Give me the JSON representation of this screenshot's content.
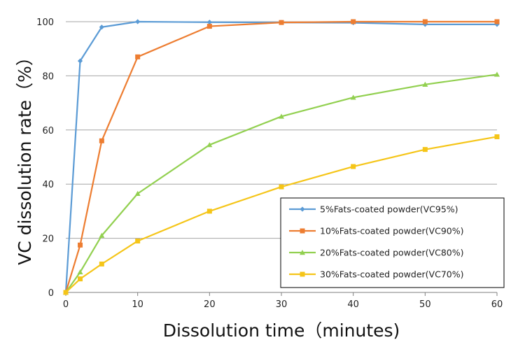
{
  "chart_data": {
    "type": "line",
    "xlabel": "Dissolution time（minutes)",
    "ylabel": "VC dissolution rate（%）",
    "xlim": [
      0,
      60
    ],
    "ylim": [
      0,
      100
    ],
    "x_ticks": [
      0,
      10,
      20,
      30,
      40,
      50,
      60
    ],
    "y_ticks": [
      0,
      20,
      40,
      60,
      80,
      100
    ],
    "grid": "horizontal",
    "legend_position": "bottom-right",
    "series": [
      {
        "name": "5%Fats-coated powder(VC95%)",
        "color": "#5b9bd5",
        "marker": "diamond",
        "x": [
          0,
          2,
          5,
          10,
          20,
          30,
          40,
          50,
          60
        ],
        "y": [
          0,
          85.5,
          98,
          100,
          99.8,
          99.7,
          99.6,
          99,
          99
        ]
      },
      {
        "name": "10%Fats-coated powder(VC90%)",
        "color": "#ed7d31",
        "marker": "square",
        "x": [
          0,
          2,
          5,
          10,
          20,
          30,
          40,
          50,
          60
        ],
        "y": [
          0,
          17.5,
          56,
          87,
          98.3,
          99.7,
          100,
          100,
          100
        ]
      },
      {
        "name": "20%Fats-coated powder(VC80%)",
        "color": "#92d050",
        "marker": "triangle",
        "x": [
          0,
          2,
          5,
          10,
          20,
          30,
          40,
          50,
          60
        ],
        "y": [
          0,
          7.5,
          21,
          36.5,
          54.5,
          65,
          72,
          76.8,
          80.5
        ]
      },
      {
        "name": "30%Fats-coated powder(VC70%)",
        "color": "#f5c518",
        "marker": "square",
        "x": [
          0,
          2,
          5,
          10,
          20,
          30,
          40,
          50,
          60
        ],
        "y": [
          0,
          5,
          10.5,
          19,
          30,
          39,
          46.5,
          52.8,
          57.5
        ]
      }
    ]
  }
}
